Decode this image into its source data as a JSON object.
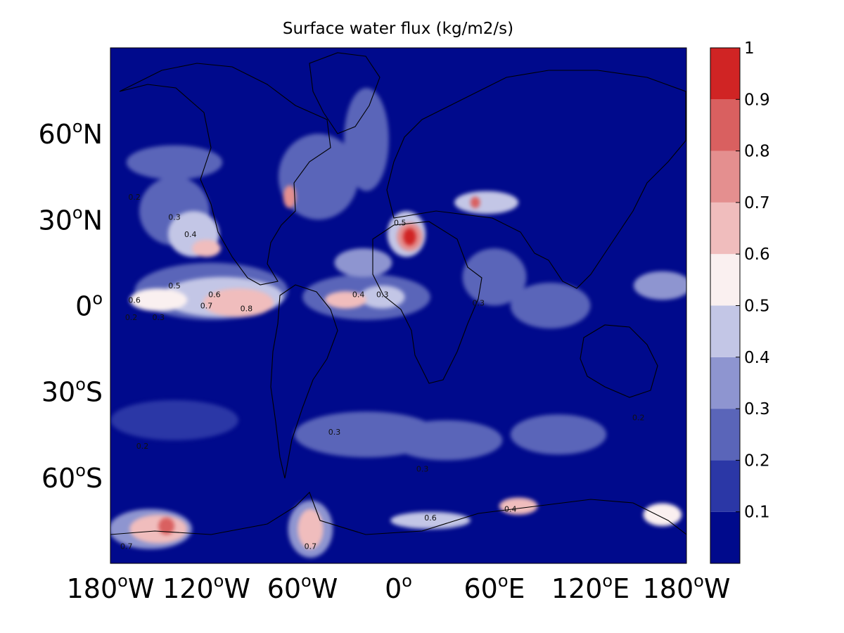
{
  "figure": {
    "title": "Surface water flux (kg/m2/s)"
  },
  "chart_data": {
    "type": "heatmap",
    "title": "Surface water flux (kg/m2/s)",
    "projection": "equirectangular",
    "xlim": [
      -180,
      180
    ],
    "ylim": [
      -90,
      90
    ],
    "x_ticks": [
      {
        "value": -180,
        "deg": "180",
        "hemi": "W"
      },
      {
        "value": -120,
        "deg": "120",
        "hemi": "W"
      },
      {
        "value": -60,
        "deg": "60",
        "hemi": "W"
      },
      {
        "value": 0,
        "deg": "0",
        "hemi": ""
      },
      {
        "value": 60,
        "deg": "60",
        "hemi": "E"
      },
      {
        "value": 120,
        "deg": "120",
        "hemi": "E"
      },
      {
        "value": 180,
        "deg": "180",
        "hemi": "W"
      }
    ],
    "y_ticks": [
      {
        "value": 60,
        "deg": "60",
        "hemi": "N"
      },
      {
        "value": 30,
        "deg": "30",
        "hemi": "N"
      },
      {
        "value": 0,
        "deg": "0",
        "hemi": ""
      },
      {
        "value": -30,
        "deg": "30",
        "hemi": "S"
      },
      {
        "value": -60,
        "deg": "60",
        "hemi": "S"
      }
    ],
    "colorbar": {
      "levels": [
        0,
        0.1,
        0.2,
        0.3,
        0.4,
        0.5,
        0.6,
        0.7,
        0.8,
        0.9,
        1.0
      ],
      "tick_labels": [
        "0.1",
        "0.2",
        "0.3",
        "0.4",
        "0.5",
        "0.6",
        "0.7",
        "0.8",
        "0.9",
        "1"
      ],
      "colors": [
        "#000a8c",
        "#2b37a6",
        "#5a65b9",
        "#8e95d0",
        "#c3c6e6",
        "#faf0f0",
        "#f0bdbd",
        "#e48f8f",
        "#d96060",
        "#d02424"
      ]
    },
    "ocean_color": "#000a8c",
    "features": [
      {
        "lon": -117,
        "lat": 5,
        "rx": 48,
        "ry": 10,
        "level": 2
      },
      {
        "lon": -110,
        "lat": 3,
        "rx": 38,
        "ry": 7,
        "level": 4
      },
      {
        "lon": -100,
        "lat": 1,
        "rx": 22,
        "ry": 5,
        "level": 6
      },
      {
        "lon": -150,
        "lat": 2,
        "rx": 18,
        "ry": 4,
        "level": 5
      },
      {
        "lon": -140,
        "lat": 33,
        "rx": 22,
        "ry": 12,
        "level": 2
      },
      {
        "lon": -128,
        "lat": 25,
        "rx": 16,
        "ry": 8,
        "level": 4
      },
      {
        "lon": -120,
        "lat": 20,
        "rx": 9,
        "ry": 3,
        "level": 6
      },
      {
        "lon": -140,
        "lat": 50,
        "rx": 30,
        "ry": 6,
        "level": 2
      },
      {
        "lon": -20,
        "lat": 3,
        "rx": 40,
        "ry": 8,
        "level": 2
      },
      {
        "lon": -33,
        "lat": 2,
        "rx": 13,
        "ry": 3,
        "level": 6
      },
      {
        "lon": -10,
        "lat": 3,
        "rx": 14,
        "ry": 4,
        "level": 4
      },
      {
        "lon": -22,
        "lat": 15,
        "rx": 18,
        "ry": 5,
        "level": 3
      },
      {
        "lon": -50,
        "lat": 45,
        "rx": 25,
        "ry": 15,
        "level": 2
      },
      {
        "lon": -68,
        "lat": 38,
        "rx": 4,
        "ry": 4,
        "level": 7
      },
      {
        "lon": -20,
        "lat": 58,
        "rx": 14,
        "ry": 18,
        "level": 2
      },
      {
        "lon": 5,
        "lat": 25,
        "rx": 12,
        "ry": 8,
        "level": 4
      },
      {
        "lon": 7,
        "lat": 24,
        "rx": 8,
        "ry": 5,
        "level": 7
      },
      {
        "lon": 7,
        "lat": 24,
        "rx": 4,
        "ry": 3,
        "level": 9
      },
      {
        "lon": 55,
        "lat": 36,
        "rx": 20,
        "ry": 4,
        "level": 4
      },
      {
        "lon": 48,
        "lat": 36,
        "rx": 3,
        "ry": 2,
        "level": 8
      },
      {
        "lon": 60,
        "lat": 10,
        "rx": 20,
        "ry": 10,
        "level": 2
      },
      {
        "lon": 95,
        "lat": 0,
        "rx": 25,
        "ry": 8,
        "level": 2
      },
      {
        "lon": 165,
        "lat": 7,
        "rx": 18,
        "ry": 5,
        "level": 3
      },
      {
        "lon": -140,
        "lat": -40,
        "rx": 40,
        "ry": 7,
        "level": 1
      },
      {
        "lon": -20,
        "lat": -45,
        "rx": 45,
        "ry": 8,
        "level": 2
      },
      {
        "lon": 30,
        "lat": -47,
        "rx": 35,
        "ry": 7,
        "level": 2
      },
      {
        "lon": 100,
        "lat": -45,
        "rx": 30,
        "ry": 7,
        "level": 2
      },
      {
        "lon": -155,
        "lat": -78,
        "rx": 26,
        "ry": 7,
        "level": 3
      },
      {
        "lon": -150,
        "lat": -78,
        "rx": 18,
        "ry": 5,
        "level": 6
      },
      {
        "lon": -145,
        "lat": -77,
        "rx": 5,
        "ry": 3,
        "level": 8
      },
      {
        "lon": -55,
        "lat": -78,
        "rx": 14,
        "ry": 10,
        "level": 3
      },
      {
        "lon": -55,
        "lat": -78,
        "rx": 8,
        "ry": 7,
        "level": 6
      },
      {
        "lon": 20,
        "lat": -75,
        "rx": 25,
        "ry": 3,
        "level": 4
      },
      {
        "lon": 75,
        "lat": -70,
        "rx": 12,
        "ry": 3,
        "level": 6
      },
      {
        "lon": 165,
        "lat": -73,
        "rx": 12,
        "ry": 4,
        "level": 5
      }
    ],
    "contour_labels": [
      {
        "lon": -130,
        "lat": 24,
        "text": "0.4"
      },
      {
        "lon": -140,
        "lat": 6,
        "text": "0.5"
      },
      {
        "lon": -115,
        "lat": 3,
        "text": "0.6"
      },
      {
        "lon": -95,
        "lat": -2,
        "text": "0.8"
      },
      {
        "lon": -120,
        "lat": -1,
        "text": "0.7"
      },
      {
        "lon": -165,
        "lat": 1,
        "text": "0.6"
      },
      {
        "lon": -167,
        "lat": -5,
        "text": "0.2"
      },
      {
        "lon": -150,
        "lat": -5,
        "text": "0.3"
      },
      {
        "lon": -165,
        "lat": 37,
        "text": "0.2"
      },
      {
        "lon": -140,
        "lat": 30,
        "text": "0.3"
      },
      {
        "lon": 1,
        "lat": 28,
        "text": "0.5"
      },
      {
        "lon": -25,
        "lat": 3,
        "text": "0.4"
      },
      {
        "lon": -10,
        "lat": 3,
        "text": "0.3"
      },
      {
        "lon": 50,
        "lat": 0,
        "text": "0.3"
      },
      {
        "lon": 150,
        "lat": -40,
        "text": "0.2"
      },
      {
        "lon": -160,
        "lat": -50,
        "text": "0.2"
      },
      {
        "lon": -55,
        "lat": -85,
        "text": "0.7"
      },
      {
        "lon": -170,
        "lat": -85,
        "text": "0.7"
      },
      {
        "lon": 20,
        "lat": -75,
        "text": "0.6"
      },
      {
        "lon": 70,
        "lat": -72,
        "text": "0.4"
      },
      {
        "lon": -40,
        "lat": -45,
        "text": "0.3"
      },
      {
        "lon": 15,
        "lat": -58,
        "text": "0.3"
      }
    ]
  }
}
